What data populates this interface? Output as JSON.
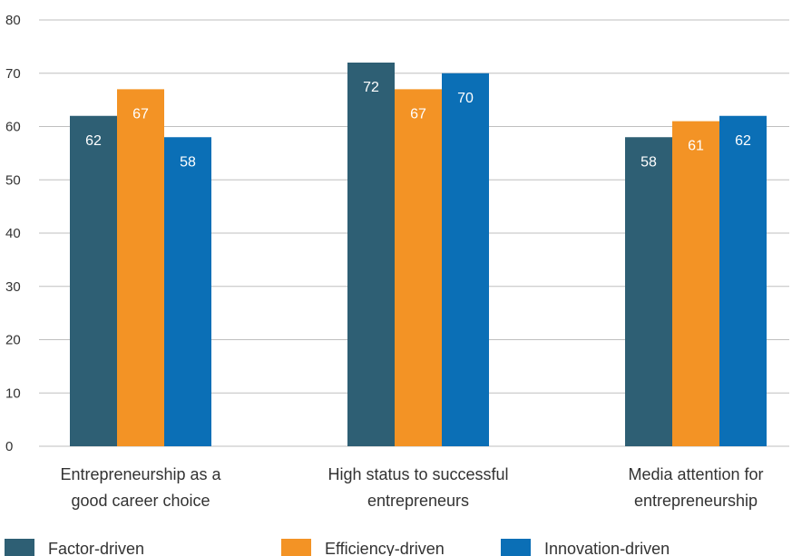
{
  "chart_data": {
    "type": "bar",
    "categories": [
      [
        "Entrepreneurship as a",
        "good career choice"
      ],
      [
        "High status to successful",
        "entrepreneurs"
      ],
      [
        "Media attention for",
        "entrepreneurship"
      ]
    ],
    "series": [
      {
        "name": "Factor-driven",
        "color": "#2e5f74",
        "values": [
          62,
          72,
          58
        ],
        "labels": [
          "62",
          "72",
          "58"
        ]
      },
      {
        "name": "Efficiency-driven",
        "color": "#f39325",
        "values": [
          67,
          67,
          61
        ],
        "labels": [
          "67",
          "67",
          "61"
        ]
      },
      {
        "name": "Innovation-driven",
        "color": "#0b6fb6",
        "values": [
          58,
          70,
          62
        ],
        "labels": [
          "58",
          "70",
          "62"
        ]
      }
    ],
    "ylim": [
      0,
      80
    ],
    "yticks": [
      "0",
      "10",
      "20",
      "30",
      "40",
      "50",
      "60",
      "70",
      "80"
    ],
    "grid": true,
    "legend": "bottom"
  }
}
